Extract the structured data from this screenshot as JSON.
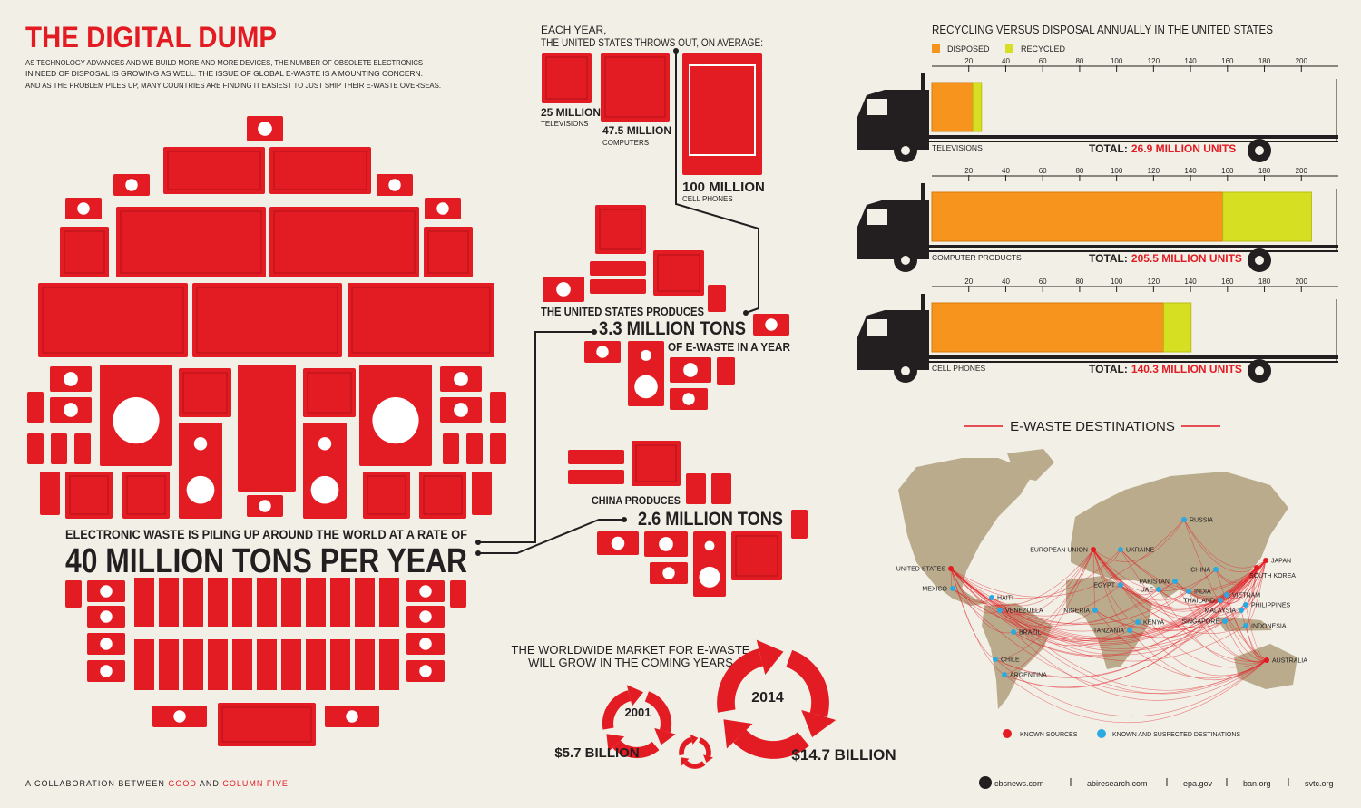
{
  "header": {
    "title": "THE DIGITAL DUMP",
    "intro": [
      "AS TECHNOLOGY ADVANCES AND WE BUILD MORE AND MORE DEVICES, THE NUMBER OF OBSOLETE ELECTRONICS",
      "IN NEED OF DISPOSAL IS GROWING AS WELL. THE ISSUE OF GLOBAL E-WASTE IS A MOUNTING CONCERN.",
      "AND AS THE PROBLEM PILES UP, MANY COUNTRIES ARE FINDING IT EASIEST TO JUST SHIP THEIR E-WASTE OVERSEAS."
    ]
  },
  "us_throws": {
    "intro": [
      "EACH YEAR,",
      "THE UNITED STATES THROWS OUT, ON AVERAGE:"
    ],
    "items": [
      {
        "amount": "25 MILLION",
        "label": "TELEVISIONS"
      },
      {
        "amount": "47.5 MILLION",
        "label": "COMPUTERS"
      },
      {
        "amount": "100 MILLION",
        "label": "CELL PHONES"
      }
    ]
  },
  "us_produces": {
    "lines": [
      "THE UNITED STATES PRODUCES",
      "3.3 MILLION TONS",
      "OF E-WASTE IN A YEAR"
    ]
  },
  "china_produces": {
    "lines": [
      "CHINA PRODUCES",
      "2.6 MILLION TONS"
    ]
  },
  "world": {
    "lines": [
      "ELECTRONIC WASTE IS PILING UP AROUND THE WORLD AT A RATE OF",
      "40 MILLION TONS PER YEAR"
    ]
  },
  "market": {
    "lines": [
      "THE WORLDWIDE MARKET FOR E-WASTE",
      "WILL GROW IN THE COMING YEARS"
    ],
    "points": [
      {
        "year": "2001",
        "value": "$5.7 BILLION"
      },
      {
        "year": "2014",
        "value": "$14.7 BILLION"
      }
    ]
  },
  "chart_data": {
    "type": "bar",
    "orientation": "horizontal",
    "stacked": true,
    "title": "RECYCLING VERSUS DISPOSAL ANNUALLY IN THE UNITED STATES",
    "categories": [
      "TELEVISIONS",
      "COMPUTER PRODUCTS",
      "CELL PHONES"
    ],
    "series": [
      {
        "name": "DISPOSED",
        "color": "#f7941d",
        "values": [
          22.2,
          157.5,
          125.5
        ]
      },
      {
        "name": "RECYCLED",
        "color": "#d7df23",
        "values": [
          4.7,
          48,
          14.8
        ]
      }
    ],
    "total_prefix": "TOTAL:",
    "totals": [
      "26.9 MILLION UNITS",
      "205.5 MILLION UNITS",
      "140.3 MILLION UNITS"
    ],
    "xlim": [
      0,
      220
    ],
    "xticks": [
      20,
      40,
      60,
      80,
      100,
      120,
      140,
      160,
      180,
      200
    ]
  },
  "map": {
    "title": "E-WASTE DESTINATIONS",
    "places": [
      {
        "name": "RUSSIA",
        "color": "#29abe2"
      },
      {
        "name": "EUROPEAN UNION",
        "color": "#e31b23"
      },
      {
        "name": "UKRAINE",
        "color": "#29abe2"
      },
      {
        "name": "UNITED STATES",
        "color": "#e31b23"
      },
      {
        "name": "CHINA",
        "color": "#29abe2"
      },
      {
        "name": "JAPAN",
        "color": "#e31b23"
      },
      {
        "name": "SOUTH KOREA",
        "color": "#e31b23"
      },
      {
        "name": "PAKISTAN",
        "color": "#29abe2"
      },
      {
        "name": "UAE",
        "color": "#29abe2"
      },
      {
        "name": "EGYPT",
        "color": "#29abe2"
      },
      {
        "name": "INDIA",
        "color": "#29abe2"
      },
      {
        "name": "THAILAND",
        "color": "#29abe2"
      },
      {
        "name": "VIETNAM",
        "color": "#29abe2"
      },
      {
        "name": "PHILIPPINES",
        "color": "#29abe2"
      },
      {
        "name": "MALAYSIA",
        "color": "#29abe2"
      },
      {
        "name": "SINGAPORE",
        "color": "#29abe2"
      },
      {
        "name": "INDONESIA",
        "color": "#29abe2"
      },
      {
        "name": "AUSTRALIA",
        "color": "#e31b23"
      },
      {
        "name": "MEXICO",
        "color": "#29abe2"
      },
      {
        "name": "HAITI",
        "color": "#29abe2"
      },
      {
        "name": "VENEZUELA",
        "color": "#29abe2"
      },
      {
        "name": "NIGERIA",
        "color": "#29abe2"
      },
      {
        "name": "KENYA",
        "color": "#29abe2"
      },
      {
        "name": "TANZANIA",
        "color": "#29abe2"
      },
      {
        "name": "BRAZIL",
        "color": "#29abe2"
      },
      {
        "name": "CHILE",
        "color": "#29abe2"
      },
      {
        "name": "ARGENTINA",
        "color": "#29abe2"
      }
    ],
    "legend": [
      {
        "label": "KNOWN SOURCES",
        "color": "#e31b23"
      },
      {
        "label": "KNOWN AND SUSPECTED DESTINATIONS",
        "color": "#29abe2"
      }
    ]
  },
  "footer": {
    "credit": [
      "A COLLABORATION BETWEEN ",
      "GOOD",
      " AND ",
      "COLUMN FIVE"
    ],
    "sources": [
      "cbsnews.com",
      "abiresearch.com",
      "epa.gov",
      "ban.org",
      "svtc.org"
    ]
  }
}
